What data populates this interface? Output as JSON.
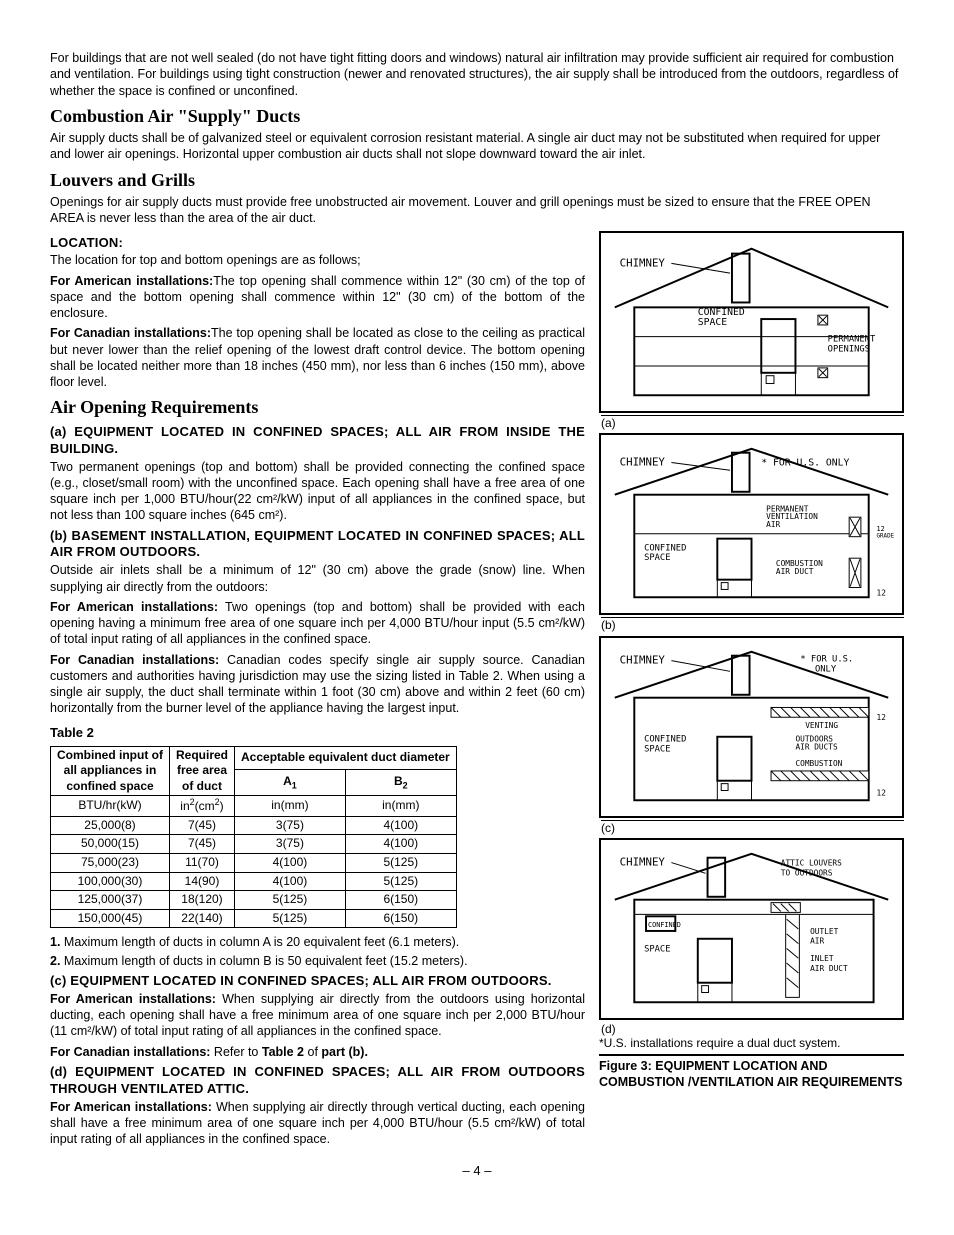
{
  "intro": "For buildings that are not well sealed (do not have tight fitting doors and windows) natural air infiltration may provide sufficient air required for combustion and ventilation. For buildings using tight construction (newer and renovated structures), the air supply shall be introduced from the outdoors, regardless of whether the space is confined or unconfined.",
  "sec1_h": "Combustion Air \"Supply\" Ducts",
  "sec1_p": "Air supply ducts shall be of galvanized steel or equivalent corrosion resistant material. A single air duct may not be substituted when required for upper and lower air openings. Horizontal upper combustion air ducts shall not slope downward toward the air inlet.",
  "sec2_h": "Louvers and Grills",
  "sec2_p": "Openings for air supply ducts must provide free unobstructed air movement.  Louver and grill openings must be sized to ensure that the FREE OPEN AREA is never less than the area of the air duct.",
  "loc_h": "LOCATION:",
  "loc_p1": "The location for top and bottom openings are as follows;",
  "loc_am_b": "For American installations:",
  "loc_am": "The top opening shall commence within 12\" (30 cm) of the top of space and the bottom opening shall commence within 12\" (30 cm) of the bottom of the enclosure.",
  "loc_ca_b": "For Canadian installations:",
  "loc_ca": "The top opening shall be located as close to the ceiling as practical but never lower than the relief opening of the lowest draft control device. The bottom opening shall be located neither more than 18 inches (450 mm), nor less than 6 inches (150 mm), above floor level.",
  "sec3_h": "Air Opening Requirements",
  "a_h": "(a) EQUIPMENT LOCATED IN CONFINED SPACES; ALL AIR FROM INSIDE THE BUILDING.",
  "a_p": "Two permanent openings (top and bottom) shall be provided connecting the confined space (e.g., closet/small room) with the unconfined space. Each opening shall have a free area of one square  inch per 1,000 BTU/hour(22 cm²/kW) input of all appliances in the confined space, but not less than 100 square inches (645 cm²).",
  "b_h": "(b) BASEMENT INSTALLATION, EQUIPMENT LOCATED IN CONFINED SPACES; ALL AIR FROM OUTDOORS.",
  "b_p1": "Outside air inlets shall be a minimum of 12\" (30 cm) above the grade (snow) line. When supplying air directly from the outdoors:",
  "b_am_b": "For American installations:",
  "b_am": " Two openings (top and bottom) shall be provided with each opening having a minimum free area of one square inch per 4,000 BTU/hour input (5.5 cm²/kW) of total input rating of all appliances in the confined space.",
  "b_ca_b": "For Canadian installations:",
  "b_ca": " Canadian codes specify single air supply source. Canadian customers and authorities having jurisdiction may use the sizing listed in Table 2. When using a single air supply, the duct shall terminate within 1 foot (30 cm) above and within 2 feet (60 cm) horizontally from the burner level of the appliance having the largest input.",
  "t2_label": "Table 2",
  "t2_h1a": "Combined input of",
  "t2_h1b": "all appliances in",
  "t2_h1c": "confined space",
  "t2_h2a": "Required",
  "t2_h2b": "free area",
  "t2_h2c": "of duct",
  "t2_h3": "Acceptable equivalent duct diameter",
  "t2_hA": "A",
  "t2_hB": "B",
  "t2_u1": "BTU/hr(kW)",
  "t2_u2": "in²(cm²)",
  "t2_u3": "in(mm)",
  "t2_u4": "in(mm)",
  "t2_rows": [
    [
      "25,000(8)",
      "7(45)",
      "3(75)",
      "4(100)"
    ],
    [
      "50,000(15)",
      "7(45)",
      "3(75)",
      "4(100)"
    ],
    [
      "75,000(23)",
      "11(70)",
      "4(100)",
      "5(125)"
    ],
    [
      "100,000(30)",
      "14(90)",
      "4(100)",
      "5(125)"
    ],
    [
      "125,000(37)",
      "18(120)",
      "5(125)",
      "6(150)"
    ],
    [
      "150,000(45)",
      "22(140)",
      "5(125)",
      "6(150)"
    ]
  ],
  "t2_n1b": "1.",
  "t2_n1": " Maximum length of ducts in column A is 20 equivalent feet (6.1 meters).",
  "t2_n2b": "2.",
  "t2_n2": " Maximum length of ducts in column B is 50 equivalent feet (15.2 meters).",
  "c_h": "(c) EQUIPMENT LOCATED IN CONFINED SPACES; ALL AIR FROM OUTDOORS.",
  "c_am_b": "For American installations:",
  "c_am": " When supplying air directly from the outdoors using horizontal ducting, each opening shall have a free minimum area of one square inch per 2,000 BTU/hour (11 cm²/kW) of total input rating of all appliances in the confined space.",
  "c_ca_b": "For Canadian installations:",
  "c_ca_1": " Refer to ",
  "c_ca_2": "Table 2",
  "c_ca_3": " of ",
  "c_ca_4": "part (b).",
  "d_h": "(d) EQUIPMENT LOCATED IN CONFINED SPACES; ALL AIR FROM OUTDOORS THROUGH VENTILATED ATTIC.",
  "d_am_b": "For American installations:",
  "d_am": " When supplying air directly through vertical ducting, each opening shall have a free minimum area of one square inch per 4,000 BTU/hour (5.5 cm²/kW) of total input rating of all appliances in the confined space.",
  "fig_a": "(a)",
  "fig_b": "(b)",
  "fig_c": "(c)",
  "fig_d": "(d)",
  "fig_star": "*U.S. installations require a dual duct system.",
  "fig_caption": "Figure 3: EQUIPMENT LOCATION AND COMBUSTION /VENTILATION AIR REQUIREMENTS",
  "page": "– 4 –",
  "svg_labels": {
    "chimney": "CHIMNEY",
    "confined": "CONFINED SPACE",
    "perm_open": "PERMANENT OPENINGS",
    "us_only": "* FOR U.S. ONLY",
    "perm_vent": "PERMANENT VENTILATION AIR",
    "comb_duct": "COMBUSTION AIR DUCT",
    "grade": "12 GRADE",
    "twelve": "12",
    "venting": "VENTING",
    "out_ducts": "OUTDOORS AIR DUCTS",
    "combustion": "COMBUSTION",
    "attic": "ATTIC LOUVERS TO OUTDOORS",
    "outlet": "OUTLET AIR",
    "inlet": "INLET AIR DUCT"
  }
}
